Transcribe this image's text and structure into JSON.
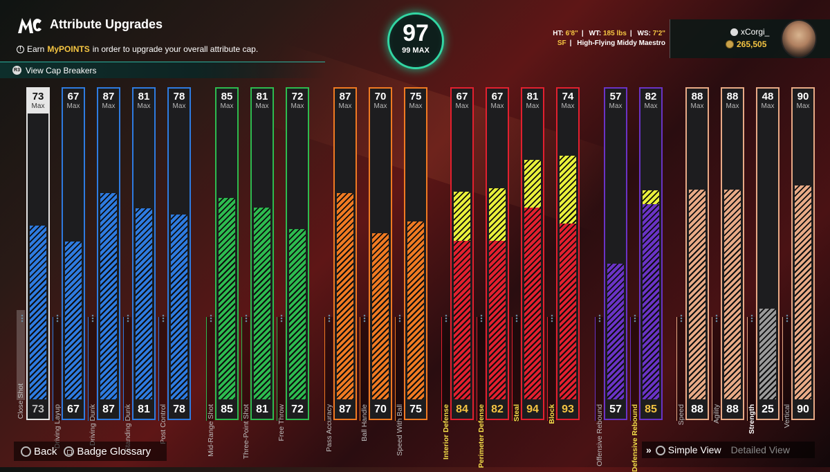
{
  "header": {
    "title": "Attribute Upgrades",
    "info_prefix": "Earn",
    "info_highlight": "MyPOINTS",
    "info_suffix": "in order to upgrade your overall attribute cap.",
    "cap_breakers": "View Cap Breakers"
  },
  "overall": {
    "value": "97",
    "max": "99 MAX"
  },
  "player": {
    "ht_label": "HT:",
    "ht": "6'8\"",
    "wt_label": "WT:",
    "wt": "185 lbs",
    "ws_label": "WS:",
    "ws": "7'2\"",
    "position": "SF",
    "archetype": "High-Flying Middy Maestro"
  },
  "user": {
    "name": "xCorgi_",
    "coins": "265,505"
  },
  "footer": {
    "back": "Back",
    "glossary": "Badge Glossary",
    "simple_view": "Simple View",
    "detailed_view": "Detailed View"
  },
  "max_label": "Max",
  "attributes": [
    {
      "name": "Close Shot",
      "max": "73",
      "current": "73",
      "fill": 0.565,
      "color": "#2e7be0",
      "frame": "#e6e6e6",
      "group": "finishing"
    },
    {
      "name": "Driving Layup",
      "max": "67",
      "current": "67",
      "fill": 0.513,
      "color": "#2e7be0",
      "frame": "#2e7be0",
      "group": "finishing"
    },
    {
      "name": "Driving Dunk",
      "max": "87",
      "current": "87",
      "fill": 0.67,
      "color": "#2e7be0",
      "frame": "#2e7be0",
      "group": "finishing"
    },
    {
      "name": "Standing Dunk",
      "max": "81",
      "current": "81",
      "fill": 0.62,
      "color": "#2e7be0",
      "frame": "#2e7be0",
      "group": "finishing"
    },
    {
      "name": "Post Control",
      "max": "78",
      "current": "78",
      "fill": 0.6,
      "color": "#2e7be0",
      "frame": "#2e7be0",
      "group": "finishing"
    },
    {
      "name": "Mid-Range Shot",
      "max": "85",
      "current": "85",
      "fill": 0.655,
      "color": "#2dbb4f",
      "frame": "#2dbb4f",
      "group": "shooting"
    },
    {
      "name": "Three-Point Shot",
      "max": "81",
      "current": "81",
      "fill": 0.623,
      "color": "#2dbb4f",
      "frame": "#2dbb4f",
      "group": "shooting"
    },
    {
      "name": "Free Throw",
      "max": "72",
      "current": "72",
      "fill": 0.553,
      "color": "#2dbb4f",
      "frame": "#2dbb4f",
      "group": "shooting"
    },
    {
      "name": "Pass Accuracy",
      "max": "87",
      "current": "87",
      "fill": 0.67,
      "color": "#f07a22",
      "frame": "#f07a22",
      "group": "playmaking"
    },
    {
      "name": "Ball Handle",
      "max": "70",
      "current": "70",
      "fill": 0.54,
      "color": "#f07a22",
      "frame": "#f07a22",
      "group": "playmaking"
    },
    {
      "name": "Speed With Ball",
      "max": "75",
      "current": "75",
      "fill": 0.577,
      "color": "#f07a22",
      "frame": "#f07a22",
      "group": "playmaking"
    },
    {
      "name": "Interior Defense",
      "max": "67",
      "current": "84",
      "fill": 0.515,
      "boost": 0.16,
      "color": "#e2202f",
      "frame": "#e2202f",
      "group": "defense"
    },
    {
      "name": "Perimeter Defense",
      "max": "67",
      "current": "82",
      "fill": 0.515,
      "boost": 0.17,
      "color": "#e2202f",
      "frame": "#e2202f",
      "group": "defense"
    },
    {
      "name": "Steal",
      "max": "81",
      "current": "94",
      "fill": 0.623,
      "boost": 0.155,
      "color": "#e2202f",
      "frame": "#e2202f",
      "group": "defense"
    },
    {
      "name": "Block",
      "max": "74",
      "current": "93",
      "fill": 0.57,
      "boost": 0.22,
      "color": "#e2202f",
      "frame": "#e2202f",
      "group": "defense"
    },
    {
      "name": "Offensive Rebound",
      "max": "57",
      "current": "57",
      "fill": 0.44,
      "color": "#6a33c6",
      "frame": "#6a33c6",
      "group": "rebounding"
    },
    {
      "name": "Defensive Rebound",
      "max": "82",
      "current": "85",
      "fill": 0.633,
      "boost": 0.045,
      "color": "#6a33c6",
      "frame": "#6a33c6",
      "group": "rebounding"
    },
    {
      "name": "Speed",
      "max": "88",
      "current": "88",
      "fill": 0.68,
      "color": "#e8aa86",
      "frame": "#e8aa86",
      "group": "physicals"
    },
    {
      "name": "Agility",
      "max": "88",
      "current": "88",
      "fill": 0.68,
      "color": "#e8aa86",
      "frame": "#e8aa86",
      "group": "physicals"
    },
    {
      "name": "Strength",
      "max": "48",
      "current": "25",
      "fill": 0.295,
      "color": "#9a9a9a",
      "frame": "#e8aa86",
      "group": "physicals"
    },
    {
      "name": "Vertical",
      "max": "90",
      "current": "90",
      "fill": 0.695,
      "color": "#e8aa86",
      "frame": "#e8aa86",
      "group": "physicals"
    }
  ]
}
